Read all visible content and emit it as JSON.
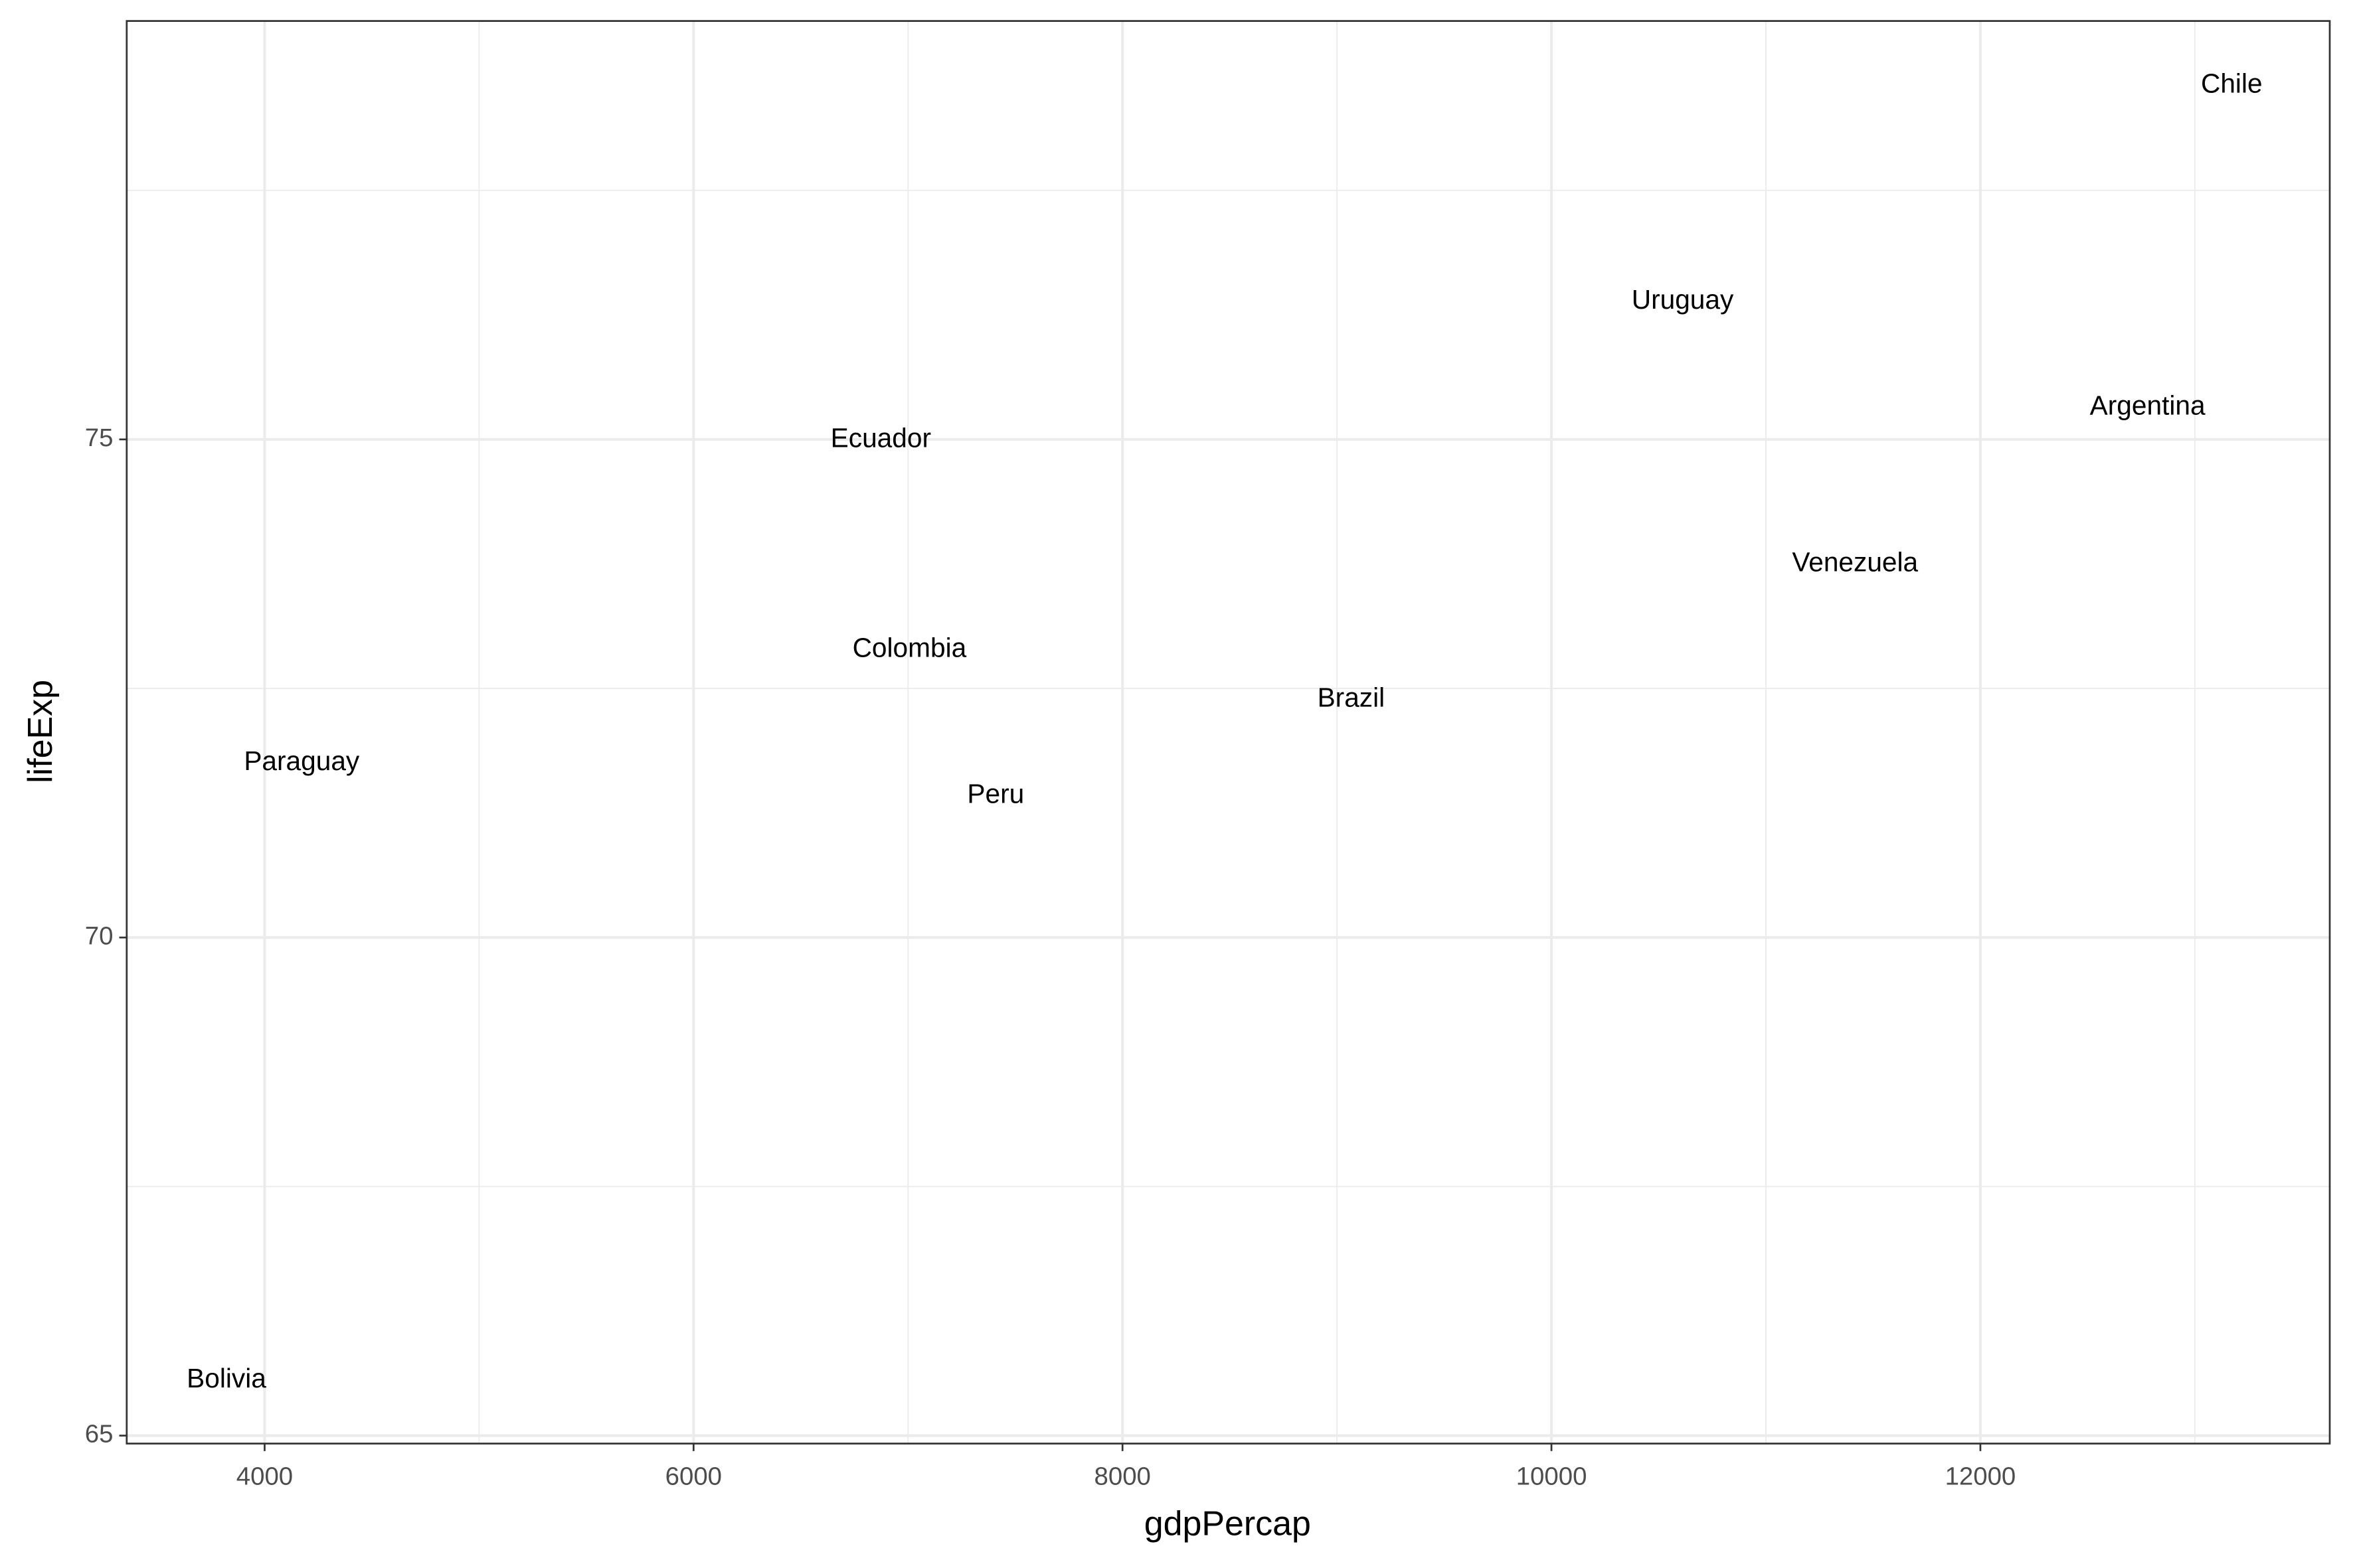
{
  "chart_data": {
    "type": "scatter",
    "x_label": "gdpPercap",
    "y_label": "lifeExp",
    "labels": [
      "Argentina",
      "Bolivia",
      "Brazil",
      "Chile",
      "Colombia",
      "Ecuador",
      "Paraguay",
      "Peru",
      "Uruguay",
      "Venezuela"
    ],
    "x": [
      12779.38,
      3822.14,
      9065.8,
      13171.64,
      7006.58,
      6873.26,
      4172.84,
      7408.91,
      10611.46,
      11415.81
    ],
    "values": [
      75.32,
      65.554,
      72.39,
      78.553,
      72.889,
      74.994,
      71.752,
      71.421,
      76.384,
      73.747
    ],
    "xlim": [
      3357,
      13629
    ],
    "ylim": [
      64.92,
      79.2
    ],
    "xticks": [
      4000,
      6000,
      8000,
      10000,
      12000
    ],
    "yticks": [
      65,
      70,
      75
    ],
    "x_minor_breaks": [
      5000,
      7000,
      9000,
      11000,
      13000
    ],
    "y_minor_breaks": [
      67.5,
      72.5,
      77.5
    ],
    "grid": true
  }
}
